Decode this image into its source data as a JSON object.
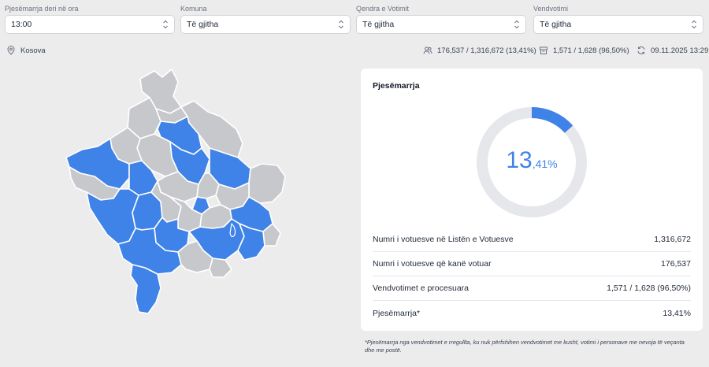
{
  "filters": [
    {
      "label": "Pjesëmarrja deri në ora",
      "value": "13:00"
    },
    {
      "label": "Komuna",
      "value": "Të gjitha"
    },
    {
      "label": "Qendra e Votimit",
      "value": "Të gjitha"
    },
    {
      "label": "Vendvotimi",
      "value": "Të gjitha"
    }
  ],
  "infobar": {
    "location": "Kosova",
    "voters": "176,537 / 1,316,672 (13,41%)",
    "stations": "1,571 / 1,628 (96,50%)",
    "updated": "09.11.2025 13:29"
  },
  "card": {
    "title": "Pjesëmarrja",
    "turnout_fraction": 0.1341,
    "turnout_int": "13",
    "turnout_dec": ",41%",
    "rows": [
      {
        "label": "Numri i votuesve në Listën e Votuesve",
        "value": "1,316,672"
      },
      {
        "label": "Numri i votuesve që kanë votuar",
        "value": "176,537"
      },
      {
        "label": "Vendvotimet e procesuara",
        "value": "1,571 / 1,628 (96,50%)"
      },
      {
        "label": "Pjesëmarrja*",
        "value": "13,41%"
      }
    ]
  },
  "footnote": "*Pjesëmarrja nga vendvotimet e rregullta, ku nuk përfshihen vendvotimet me kusht, votimi i personave me nevoja të veçanta dhe me postë.",
  "colors": {
    "accent": "#3f82e8",
    "grey_region": "#c6c8cc",
    "ring_bg": "#e5e7eb"
  }
}
